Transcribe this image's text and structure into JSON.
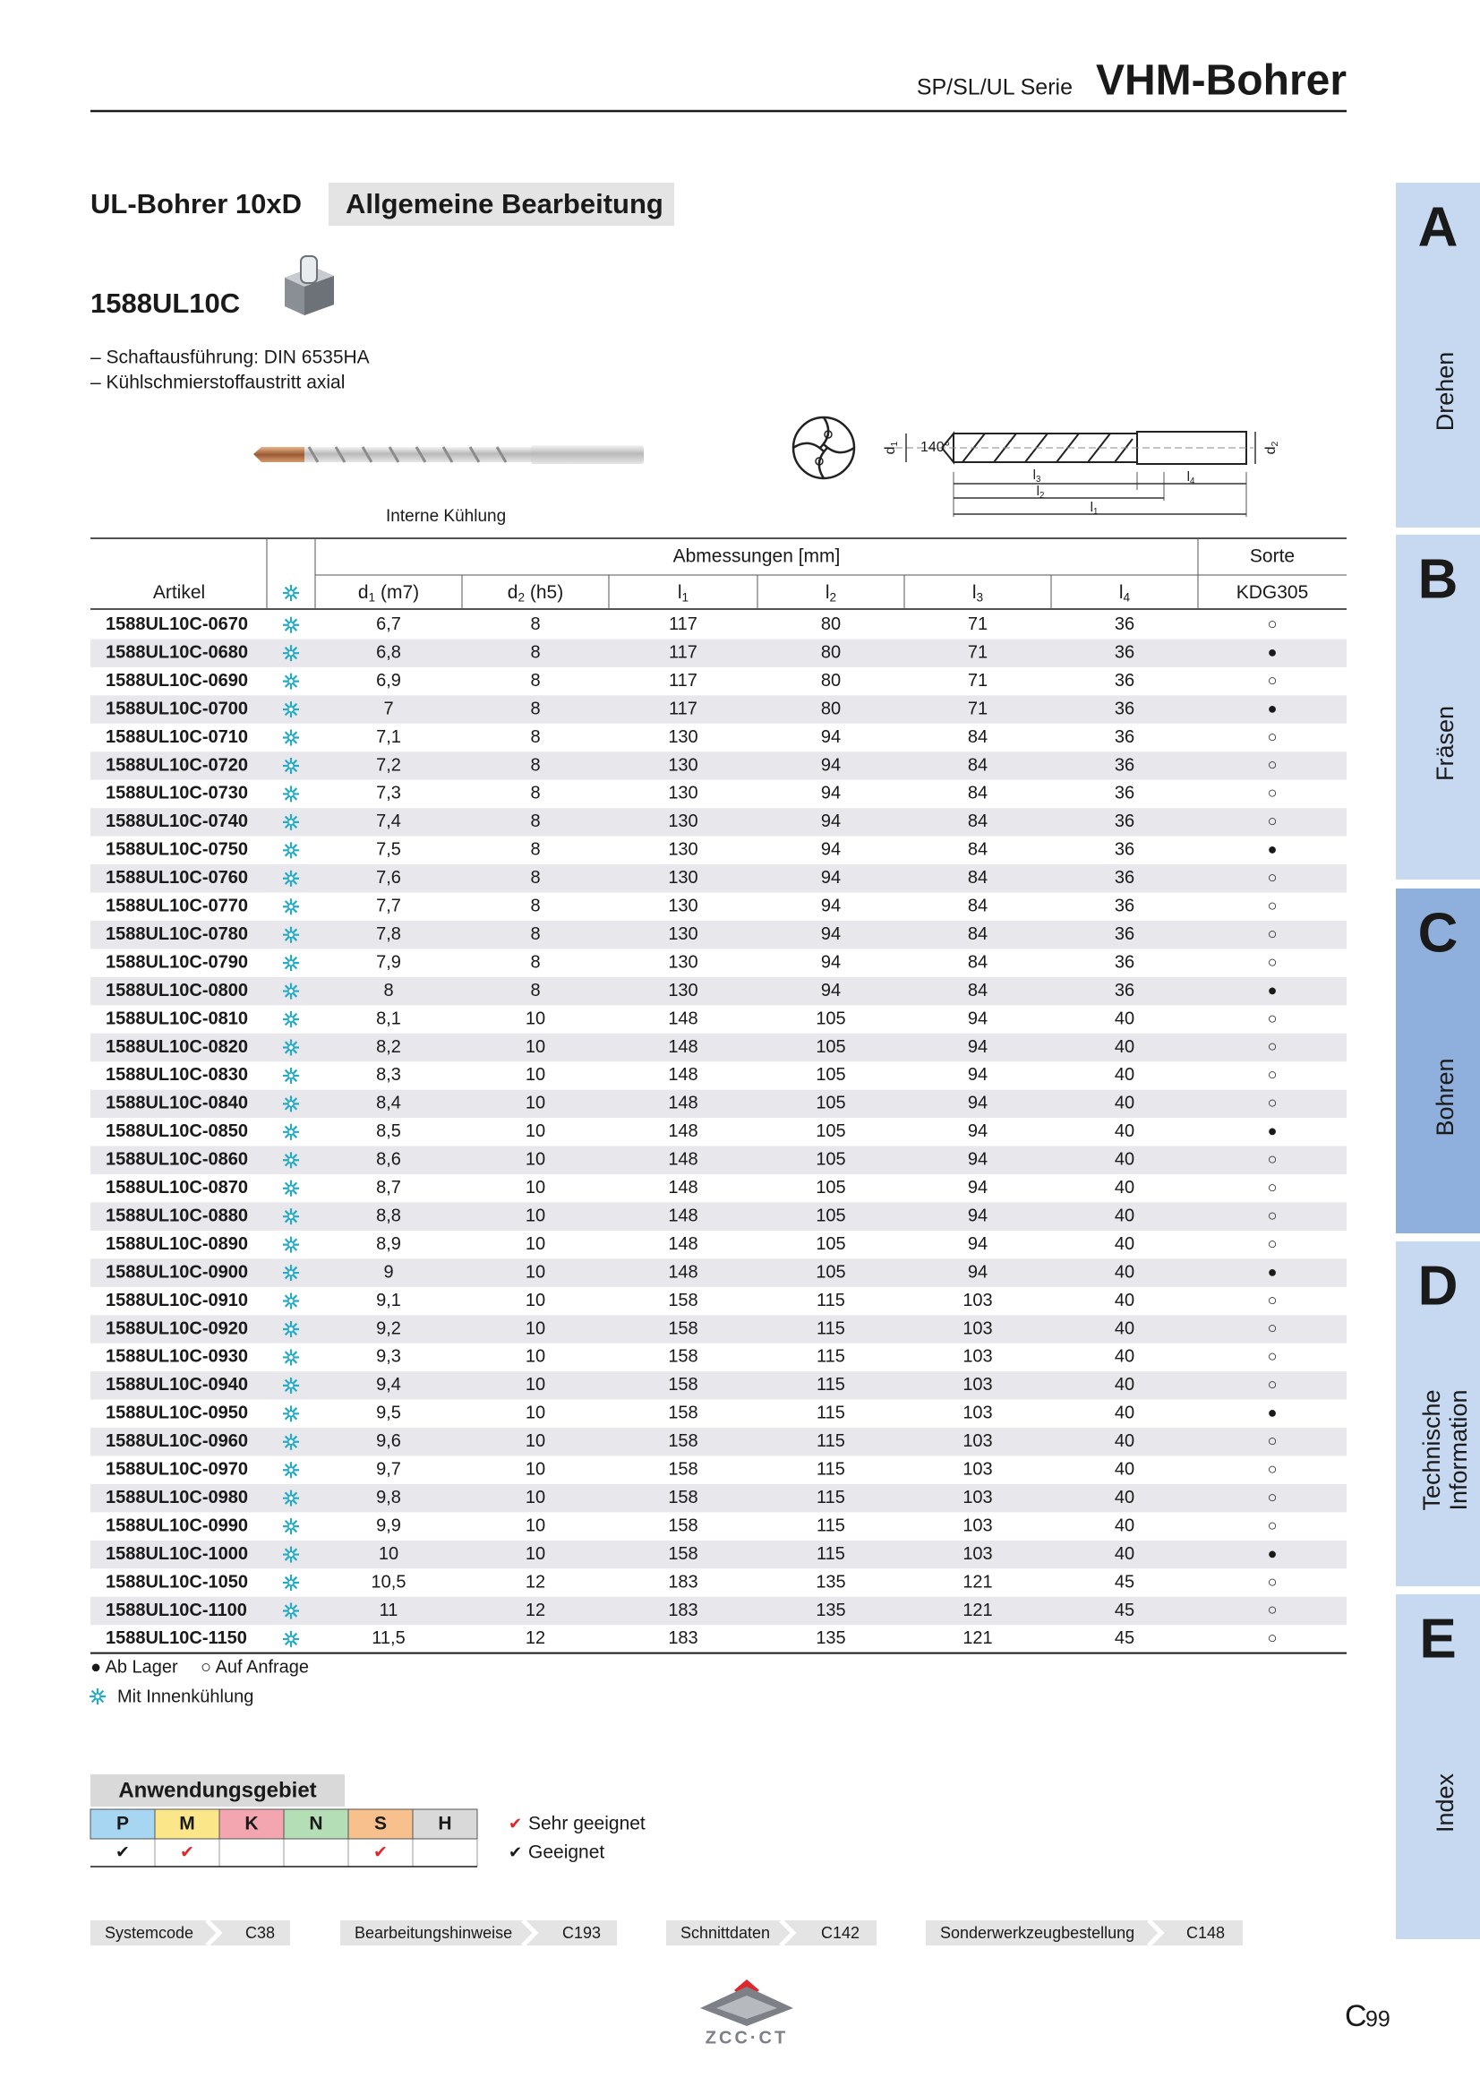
{
  "header": {
    "series": "SP/SL/UL Serie",
    "title": "VHM-Bohrer"
  },
  "section": {
    "title": "UL-Bohrer 10xD",
    "tag": "Allgemeine Bearbeitung",
    "product": "1588UL10C",
    "notes": [
      "– Schaftausführung: DIN 6535HA",
      "– Kühlschmierstoffaustritt axial"
    ],
    "image_caption": "Interne Kühlung"
  },
  "drawing": {
    "angle": "140°",
    "labels": [
      {
        "text": "d",
        "sub": "1"
      },
      {
        "text": "d",
        "sub": "2"
      },
      {
        "text": "l",
        "sub": "1"
      },
      {
        "text": "l",
        "sub": "2"
      },
      {
        "text": "l",
        "sub": "3"
      },
      {
        "text": "l",
        "sub": "4"
      }
    ]
  },
  "table": {
    "group_header": "Abmessungen [mm]",
    "grade_header": "Sorte",
    "columns": [
      {
        "text": "Artikel"
      },
      {
        "text": "d",
        "sub": "1",
        "suffix": " (m7)"
      },
      {
        "text": "d",
        "sub": "2",
        "suffix": " (h5)"
      },
      {
        "text": "l",
        "sub": "1"
      },
      {
        "text": "l",
        "sub": "2"
      },
      {
        "text": "l",
        "sub": "3"
      },
      {
        "text": "l",
        "sub": "4"
      },
      {
        "text": "KDG305"
      }
    ],
    "rows": [
      [
        "1588UL10C-0670",
        "6,7",
        "8",
        "117",
        "80",
        "71",
        "36",
        "○"
      ],
      [
        "1588UL10C-0680",
        "6,8",
        "8",
        "117",
        "80",
        "71",
        "36",
        "●"
      ],
      [
        "1588UL10C-0690",
        "6,9",
        "8",
        "117",
        "80",
        "71",
        "36",
        "○"
      ],
      [
        "1588UL10C-0700",
        "7",
        "8",
        "117",
        "80",
        "71",
        "36",
        "●"
      ],
      [
        "1588UL10C-0710",
        "7,1",
        "8",
        "130",
        "94",
        "84",
        "36",
        "○"
      ],
      [
        "1588UL10C-0720",
        "7,2",
        "8",
        "130",
        "94",
        "84",
        "36",
        "○"
      ],
      [
        "1588UL10C-0730",
        "7,3",
        "8",
        "130",
        "94",
        "84",
        "36",
        "○"
      ],
      [
        "1588UL10C-0740",
        "7,4",
        "8",
        "130",
        "94",
        "84",
        "36",
        "○"
      ],
      [
        "1588UL10C-0750",
        "7,5",
        "8",
        "130",
        "94",
        "84",
        "36",
        "●"
      ],
      [
        "1588UL10C-0760",
        "7,6",
        "8",
        "130",
        "94",
        "84",
        "36",
        "○"
      ],
      [
        "1588UL10C-0770",
        "7,7",
        "8",
        "130",
        "94",
        "84",
        "36",
        "○"
      ],
      [
        "1588UL10C-0780",
        "7,8",
        "8",
        "130",
        "94",
        "84",
        "36",
        "○"
      ],
      [
        "1588UL10C-0790",
        "7,9",
        "8",
        "130",
        "94",
        "84",
        "36",
        "○"
      ],
      [
        "1588UL10C-0800",
        "8",
        "8",
        "130",
        "94",
        "84",
        "36",
        "●"
      ],
      [
        "1588UL10C-0810",
        "8,1",
        "10",
        "148",
        "105",
        "94",
        "40",
        "○"
      ],
      [
        "1588UL10C-0820",
        "8,2",
        "10",
        "148",
        "105",
        "94",
        "40",
        "○"
      ],
      [
        "1588UL10C-0830",
        "8,3",
        "10",
        "148",
        "105",
        "94",
        "40",
        "○"
      ],
      [
        "1588UL10C-0840",
        "8,4",
        "10",
        "148",
        "105",
        "94",
        "40",
        "○"
      ],
      [
        "1588UL10C-0850",
        "8,5",
        "10",
        "148",
        "105",
        "94",
        "40",
        "●"
      ],
      [
        "1588UL10C-0860",
        "8,6",
        "10",
        "148",
        "105",
        "94",
        "40",
        "○"
      ],
      [
        "1588UL10C-0870",
        "8,7",
        "10",
        "148",
        "105",
        "94",
        "40",
        "○"
      ],
      [
        "1588UL10C-0880",
        "8,8",
        "10",
        "148",
        "105",
        "94",
        "40",
        "○"
      ],
      [
        "1588UL10C-0890",
        "8,9",
        "10",
        "148",
        "105",
        "94",
        "40",
        "○"
      ],
      [
        "1588UL10C-0900",
        "9",
        "10",
        "148",
        "105",
        "94",
        "40",
        "●"
      ],
      [
        "1588UL10C-0910",
        "9,1",
        "10",
        "158",
        "115",
        "103",
        "40",
        "○"
      ],
      [
        "1588UL10C-0920",
        "9,2",
        "10",
        "158",
        "115",
        "103",
        "40",
        "○"
      ],
      [
        "1588UL10C-0930",
        "9,3",
        "10",
        "158",
        "115",
        "103",
        "40",
        "○"
      ],
      [
        "1588UL10C-0940",
        "9,4",
        "10",
        "158",
        "115",
        "103",
        "40",
        "○"
      ],
      [
        "1588UL10C-0950",
        "9,5",
        "10",
        "158",
        "115",
        "103",
        "40",
        "●"
      ],
      [
        "1588UL10C-0960",
        "9,6",
        "10",
        "158",
        "115",
        "103",
        "40",
        "○"
      ],
      [
        "1588UL10C-0970",
        "9,7",
        "10",
        "158",
        "115",
        "103",
        "40",
        "○"
      ],
      [
        "1588UL10C-0980",
        "9,8",
        "10",
        "158",
        "115",
        "103",
        "40",
        "○"
      ],
      [
        "1588UL10C-0990",
        "9,9",
        "10",
        "158",
        "115",
        "103",
        "40",
        "○"
      ],
      [
        "1588UL10C-1000",
        "10",
        "10",
        "158",
        "115",
        "103",
        "40",
        "●"
      ],
      [
        "1588UL10C-1050",
        "10,5",
        "12",
        "183",
        "135",
        "121",
        "45",
        "○"
      ],
      [
        "1588UL10C-1100",
        "11",
        "12",
        "183",
        "135",
        "121",
        "45",
        "○"
      ],
      [
        "1588UL10C-1150",
        "11,5",
        "12",
        "183",
        "135",
        "121",
        "45",
        "○"
      ]
    ]
  },
  "legend": {
    "stock": "● Ab Lager",
    "request": "○ Auf Anfrage",
    "cooling": "Mit Innenkühlung"
  },
  "application": {
    "title": "Anwendungsgebiet",
    "materials": [
      {
        "code": "P",
        "color": "#a6d6f2",
        "check": "✔",
        "check_color": "#1a1a1a"
      },
      {
        "code": "M",
        "color": "#fbe78a",
        "check": "✔",
        "check_color": "#e0262b"
      },
      {
        "code": "K",
        "color": "#f4a6b0"
      },
      {
        "code": "N",
        "color": "#b4dfb6"
      },
      {
        "code": "S",
        "color": "#f8c08c",
        "check": "✔",
        "check_color": "#e0262b"
      },
      {
        "code": "H",
        "color": "#d9d9d9"
      }
    ],
    "legend": [
      {
        "check": "✔",
        "color": "#e0262b",
        "text": "Sehr geeignet"
      },
      {
        "check": "✔",
        "color": "#1a1a1a",
        "text": "Geeignet"
      }
    ]
  },
  "links": [
    {
      "label": "Systemcode",
      "page": "C38"
    },
    {
      "label": "Bearbeitungshinweise",
      "page": "C193"
    },
    {
      "label": "Schnittdaten",
      "page": "C142"
    },
    {
      "label": "Sonderwerkzeugbestellung",
      "page": "C148"
    }
  ],
  "tabs": [
    {
      "letter": "A",
      "label": [
        "Drehen"
      ]
    },
    {
      "letter": "B",
      "label": [
        "Fräsen"
      ]
    },
    {
      "letter": "C",
      "label": [
        "Bohren"
      ],
      "active": true
    },
    {
      "letter": "D",
      "label": [
        "Technische",
        "Information"
      ]
    },
    {
      "letter": "E",
      "label": [
        "Index"
      ]
    }
  ],
  "footer": {
    "logo": "ZCC·CT",
    "page_prefix": "C",
    "page_number": "99"
  }
}
